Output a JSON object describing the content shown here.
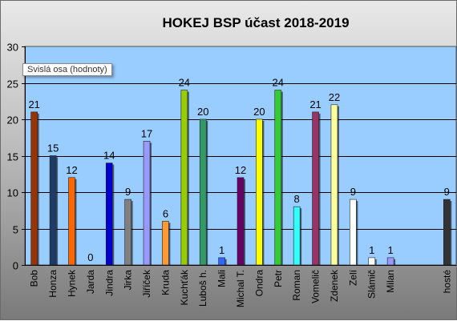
{
  "chart_data": {
    "type": "bar",
    "title": "HOKEJ BSP účast 2018-2019",
    "xlabel": "",
    "ylabel": "",
    "ylim": [
      0,
      30
    ],
    "yticks": [
      0,
      5,
      10,
      15,
      20,
      25,
      30
    ],
    "grid": true,
    "legend": "none",
    "plot_background": "#99ccff",
    "categories": [
      "Bob",
      "Honza",
      "Hynek",
      "Jarda",
      "Jindra",
      "Jirka",
      "Jiříček",
      "Kruda",
      "Kuchťák",
      "Luboš h.",
      "Mali",
      "Michal T.",
      "Ondra",
      "Petr",
      "Roman",
      "Vomelič",
      "Zdenek",
      "Zelí",
      "Slámič",
      "Milan",
      "",
      "",
      "hosté"
    ],
    "values": [
      21,
      15,
      12,
      0,
      14,
      9,
      17,
      6,
      24,
      20,
      1,
      12,
      20,
      24,
      8,
      21,
      22,
      9,
      1,
      1,
      null,
      null,
      9
    ],
    "colors": [
      "#993300",
      "#1f3a66",
      "#ff6600",
      "#ff6600",
      "#0000cc",
      "#808080",
      "#9999ff",
      "#ff9933",
      "#99cc00",
      "#339966",
      "#3366ff",
      "#660066",
      "#ffff00",
      "#33cc33",
      "#33ffff",
      "#993366",
      "#ffff99",
      "#ffffff",
      "#ffffff",
      "#9999ff",
      "#ffffff",
      "#ffffff",
      "#333333"
    ]
  },
  "tooltip": "Svislá osa (hodnoty)"
}
